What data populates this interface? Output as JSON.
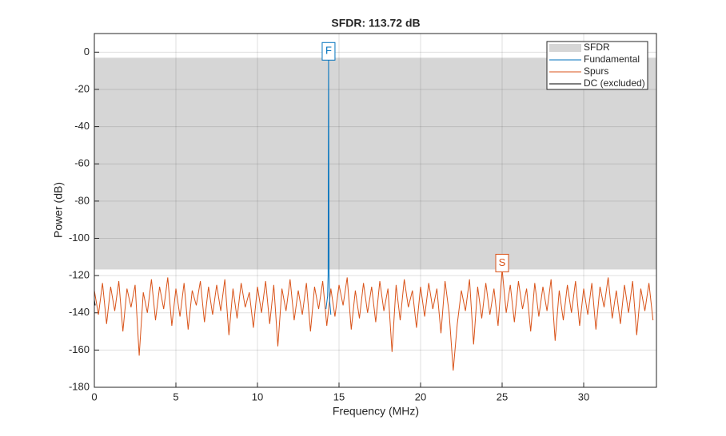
{
  "chart_data": {
    "type": "line",
    "title": "SFDR: 113.72 dB",
    "x_label": "Frequency (MHz)",
    "y_label": "Power (dB)",
    "xlim": [
      0,
      34.46
    ],
    "ylim": [
      -180,
      10
    ],
    "xticks": [
      0,
      5,
      10,
      15,
      20,
      25,
      30
    ],
    "yticks": [
      0,
      -20,
      -40,
      -60,
      -80,
      -100,
      -120,
      -140,
      -160,
      -180
    ],
    "grid": true,
    "legend_position": "top-right",
    "series": [
      {
        "name": "SFDR",
        "color": "#d6d6d6",
        "range": [
          -116.71,
          -2.99
        ]
      },
      {
        "name": "Fundamental",
        "color": "#0072bd",
        "x": [
          14.2,
          14.3,
          14.33,
          14.36,
          14.39,
          14.42,
          14.5
        ],
        "values": [
          -138,
          -131,
          -120,
          -2.99,
          -118,
          -133,
          -141
        ]
      },
      {
        "name": "Spurs",
        "color": "#d95319",
        "x": [
          0,
          0.25,
          0.5,
          0.75,
          1,
          1.25,
          1.5,
          1.75,
          2,
          2.25,
          2.5,
          2.75,
          3,
          3.25,
          3.5,
          3.75,
          4,
          4.25,
          4.5,
          4.75,
          5,
          5.25,
          5.5,
          5.75,
          6,
          6.25,
          6.5,
          6.75,
          7,
          7.25,
          7.5,
          7.75,
          8,
          8.25,
          8.5,
          8.75,
          9,
          9.25,
          9.5,
          9.75,
          10,
          10.25,
          10.5,
          10.75,
          11,
          11.25,
          11.5,
          11.75,
          12,
          12.25,
          12.5,
          12.75,
          13,
          13.25,
          13.5,
          13.75,
          14,
          14.25,
          14.5,
          14.75,
          15,
          15.25,
          15.5,
          15.75,
          16,
          16.25,
          16.5,
          16.75,
          17,
          17.25,
          17.5,
          17.75,
          18,
          18.25,
          18.5,
          18.75,
          19,
          19.25,
          19.5,
          19.75,
          20,
          20.25,
          20.5,
          20.75,
          21,
          21.25,
          21.5,
          21.75,
          22,
          22.25,
          22.5,
          22.75,
          23,
          23.25,
          23.5,
          23.75,
          24,
          24.25,
          24.5,
          24.75,
          25,
          25.25,
          25.5,
          25.75,
          26,
          26.25,
          26.5,
          26.75,
          27,
          27.25,
          27.5,
          27.75,
          28,
          28.25,
          28.5,
          28.75,
          29,
          29.25,
          29.5,
          29.75,
          30,
          30.25,
          30.5,
          30.75,
          31,
          31.25,
          31.5,
          31.75,
          32,
          32.25,
          32.5,
          32.75,
          33,
          33.25,
          33.5,
          33.75,
          34,
          34.25
        ],
        "values": [
          -128,
          -141,
          -124,
          -146,
          -126,
          -139,
          -123,
          -150,
          -127,
          -137,
          -125,
          -163,
          -129,
          -140,
          -122,
          -144,
          -126,
          -138,
          -121,
          -147,
          -127,
          -142,
          -124,
          -149,
          -128,
          -136,
          -123,
          -145,
          -126,
          -141,
          -125,
          -139,
          -122,
          -152,
          -127,
          -143,
          -124,
          -137,
          -129,
          -148,
          -126,
          -140,
          -123,
          -146,
          -125,
          -158,
          -127,
          -139,
          -122,
          -144,
          -128,
          -141,
          -124,
          -150,
          -126,
          -138,
          -123,
          -147,
          -127,
          -142,
          -125,
          -136,
          -121,
          -149,
          -128,
          -143,
          -124,
          -140,
          -126,
          -145,
          -123,
          -139,
          -127,
          -161,
          -125,
          -144,
          -122,
          -137,
          -128,
          -148,
          -126,
          -142,
          -124,
          -138,
          -127,
          -151,
          -123,
          -140,
          -171,
          -146,
          -128,
          -139,
          -122,
          -157,
          -126,
          -143,
          -124,
          -141,
          -127,
          -147,
          -116.71,
          -140,
          -125,
          -145,
          -123,
          -138,
          -127,
          -150,
          -124,
          -142,
          -126,
          -139,
          -122,
          -155,
          -128,
          -144,
          -125,
          -140,
          -123,
          -147,
          -127,
          -141,
          -124,
          -149,
          -126,
          -137,
          -121,
          -143,
          -128,
          -146,
          -125,
          -140,
          -123,
          -152,
          -127,
          -139,
          -124,
          -144
        ]
      },
      {
        "name": "DC (excluded)",
        "color": "#000000",
        "x": [
          0,
          0.05
        ],
        "values": [
          -133,
          -136
        ]
      }
    ],
    "annotations": [
      {
        "text": "F",
        "x": 14.36,
        "y": -2.99,
        "color": "#0072bd"
      },
      {
        "text": "S",
        "x": 25,
        "y": -116.71,
        "color": "#d95319"
      }
    ]
  }
}
